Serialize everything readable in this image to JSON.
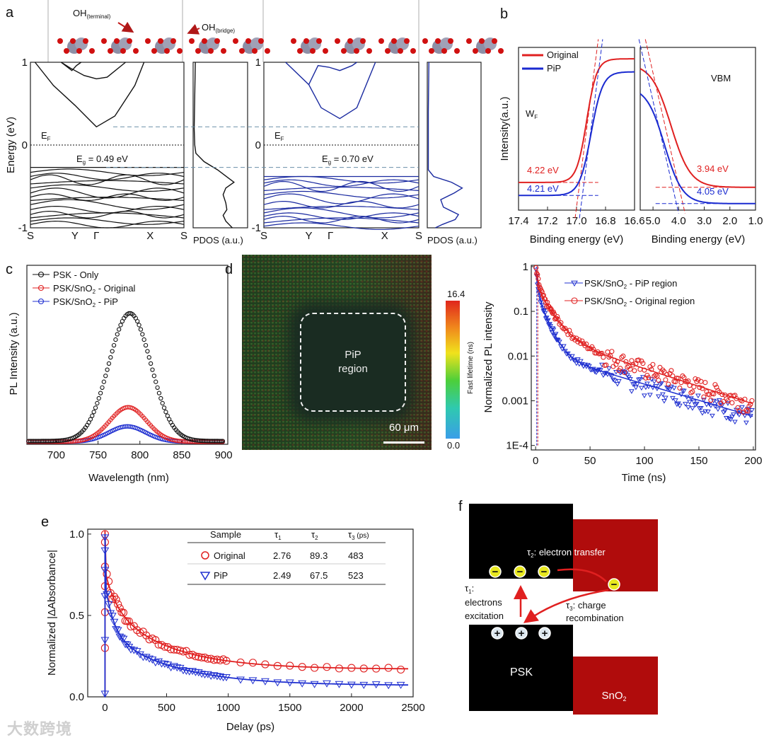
{
  "panel_labels": {
    "a": "a",
    "b": "b",
    "c": "c",
    "d": "d",
    "e": "e",
    "f": "f"
  },
  "watermark": "大数跨境",
  "chart_data": [
    {
      "id": "a-band-original",
      "type": "line",
      "color": "#111111",
      "ylabel": "Energy (eV)",
      "ylim": [
        -1,
        1
      ],
      "yticks": [
        "1",
        "0",
        "-1"
      ],
      "kpoints": [
        "S",
        "Y",
        "Γ",
        "X",
        "S"
      ],
      "fermi": {
        "main": "E",
        "sub": "F"
      },
      "gap": {
        "main": "E",
        "sub": "g",
        "rest": " = 0.49 eV"
      },
      "cbm": 0.22,
      "vbm": -0.27,
      "conduction_bands": [
        [
          [
            0.03,
            1.0
          ],
          [
            0.15,
            0.72
          ],
          [
            0.29,
            0.48
          ],
          [
            0.43,
            0.22
          ],
          [
            0.55,
            0.35
          ],
          [
            0.68,
            0.72
          ],
          [
            0.74,
            1.0
          ]
        ],
        [
          [
            0.2,
            1.0
          ],
          [
            0.26,
            0.93
          ],
          [
            0.35,
            0.84
          ],
          [
            0.43,
            0.8
          ],
          [
            0.5,
            0.82
          ],
          [
            0.62,
            1.0
          ]
        ],
        [
          [
            0.2,
            1.0
          ],
          [
            0.27,
            0.9
          ],
          [
            0.3,
            0.96
          ],
          [
            0.33,
            1.0
          ]
        ]
      ],
      "valence_bands": [
        -0.27,
        -0.33,
        -0.38,
        -0.42,
        -0.47,
        -0.52,
        -0.58,
        -0.63,
        -0.67,
        -0.72,
        -0.78,
        -0.84,
        -0.88,
        -0.92,
        -0.96
      ]
    },
    {
      "id": "a-pdos-original",
      "type": "line",
      "color": "#111111",
      "xlabel": "PDOS (a.u.)",
      "points": [
        [
          1,
          0.04
        ],
        [
          0.6,
          0.03
        ],
        [
          0.2,
          0.02
        ],
        [
          0,
          0.03
        ],
        [
          -0.1,
          0.05
        ],
        [
          -0.2,
          0.2
        ],
        [
          -0.3,
          0.45
        ],
        [
          -0.4,
          0.65
        ],
        [
          -0.45,
          0.75
        ],
        [
          -0.52,
          0.6
        ],
        [
          -0.6,
          0.55
        ],
        [
          -0.7,
          0.6
        ],
        [
          -0.78,
          0.62
        ],
        [
          -0.85,
          0.55
        ],
        [
          -0.92,
          0.6
        ],
        [
          -1,
          0.72
        ]
      ]
    },
    {
      "id": "a-band-pip",
      "type": "line",
      "color": "#1a2aa0",
      "ylim": [
        -1,
        1
      ],
      "yticks": [
        "1",
        "0",
        "-1"
      ],
      "kpoints": [
        "S",
        "Y",
        "Γ",
        "X",
        "S"
      ],
      "fermi": {
        "main": "E",
        "sub": "F"
      },
      "gap": {
        "main": "E",
        "sub": "g",
        "rest": " = 0.70 eV"
      },
      "cbm": 0.32,
      "vbm": -0.38,
      "conduction_bands": [
        [
          [
            0.14,
            1.0
          ],
          [
            0.29,
            0.73
          ],
          [
            0.37,
            0.45
          ],
          [
            0.49,
            0.32
          ],
          [
            0.6,
            0.45
          ],
          [
            0.72,
            1.0
          ]
        ],
        [
          [
            0.29,
            0.73
          ],
          [
            0.35,
            0.96
          ],
          [
            0.42,
            0.94
          ],
          [
            0.49,
            0.9
          ],
          [
            0.57,
            0.96
          ],
          [
            0.6,
            1.0
          ]
        ]
      ],
      "valence_bands": [
        -0.38,
        -0.42,
        -0.46,
        -0.5,
        -0.55,
        -0.6,
        -0.65,
        -0.72,
        -0.78,
        -0.82,
        -0.86,
        -0.9,
        -0.94,
        -0.98
      ]
    },
    {
      "id": "a-pdos-pip",
      "type": "line",
      "color": "#1a2aa0",
      "xlabel": "PDOS (a.u.)",
      "points": [
        [
          1,
          0.03
        ],
        [
          0.4,
          0.02
        ],
        [
          0,
          0.02
        ],
        [
          -0.3,
          0.02
        ],
        [
          -0.38,
          0.12
        ],
        [
          -0.45,
          0.45
        ],
        [
          -0.52,
          0.65
        ],
        [
          -0.58,
          0.5
        ],
        [
          -0.66,
          0.25
        ],
        [
          -0.75,
          0.3
        ],
        [
          -0.84,
          0.58
        ],
        [
          -0.9,
          0.52
        ],
        [
          -0.96,
          0.28
        ],
        [
          -1,
          0.15
        ]
      ]
    },
    {
      "id": "a-structure",
      "annotations": [
        {
          "main": "OH",
          "sub": "(terminal)"
        },
        {
          "main": "OH",
          "sub": "(bridge)"
        }
      ]
    },
    {
      "id": "b-wf",
      "type": "line",
      "ylabel": "Intensity(a.u.)",
      "xlabel": "Binding energy (eV)",
      "xlim": [
        17.4,
        16.6
      ],
      "xticks": [
        "17.4",
        "17.2",
        "17.0",
        "16.8",
        "16.6"
      ],
      "label": {
        "main": "W",
        "sub": "F"
      },
      "legend": [
        {
          "name": "Original",
          "color": "#e02020"
        },
        {
          "name": "PiP",
          "color": "#1a2ad0"
        }
      ],
      "series": [
        {
          "name": "Original",
          "color": "#e02020",
          "base": 0.17,
          "top": 0.93,
          "center": 16.93,
          "width": 0.035,
          "value_label": "4.22 eV"
        },
        {
          "name": "PiP",
          "color": "#1a2ad0",
          "base": 0.09,
          "top": 0.85,
          "center": 16.9,
          "width": 0.04,
          "value_label": "4.21 eV"
        }
      ]
    },
    {
      "id": "b-vbm",
      "type": "line",
      "xlabel": "Binding energy (eV)",
      "xlim": [
        5.5,
        1.0
      ],
      "xticks": [
        "5.0",
        "4.0",
        "3.0",
        "2.0",
        "1.0"
      ],
      "label": "VBM",
      "series": [
        {
          "name": "Original",
          "color": "#e02020",
          "base": 0.14,
          "top": 0.9,
          "center": 4.3,
          "width": 0.38,
          "value_label": "3.94 eV",
          "cutoff": 3.94
        },
        {
          "name": "PiP",
          "color": "#1a2ad0",
          "base": 0.04,
          "top": 0.76,
          "center": 4.55,
          "width": 0.35,
          "value_label": "4.05 eV",
          "cutoff": 4.05
        }
      ]
    },
    {
      "id": "c-pl",
      "type": "scatter",
      "xlabel": "Wavelength (nm)",
      "ylabel": "PL Intensity (a.u.)",
      "xlim": [
        665,
        905
      ],
      "ylim": [
        0,
        1.4
      ],
      "xticks": [
        700,
        750,
        800,
        850,
        900
      ],
      "series": [
        {
          "name": "PSK - Only",
          "color": "#111111",
          "center": 788,
          "sigma": 25,
          "amp": 1.0,
          "base": 0.025
        },
        {
          "name": "PSK/SnO",
          "sub": "2",
          "rest": " - Original",
          "color": "#e02020",
          "center": 786,
          "sigma": 22,
          "amp": 0.27,
          "base": 0.02
        },
        {
          "name": "PSK/SnO",
          "sub": "2",
          "rest": " - PiP",
          "color": "#2030d0",
          "center": 785,
          "sigma": 22,
          "amp": 0.12,
          "base": 0.02
        }
      ]
    },
    {
      "id": "d-flim",
      "type": "heatmap",
      "region_label": [
        "PiP",
        "region"
      ],
      "scale_label": "60 μm",
      "colorbar": {
        "label": "Fast lifetime (ns)",
        "max": "16.4",
        "min": "0.0"
      }
    },
    {
      "id": "d-trpl",
      "type": "scatter",
      "xlabel": "Time (ns)",
      "ylabel": "Normalized PL intensity",
      "xlim": [
        -4,
        202
      ],
      "yscale": "log",
      "ylim_log10": [
        -4.1,
        0.03
      ],
      "xticks": [
        0,
        50,
        100,
        150,
        200
      ],
      "yticks": [
        "1",
        "0.1",
        "0.01",
        "0.001",
        "1E-4"
      ],
      "series": [
        {
          "name": "PSK/SnO",
          "sub": "2",
          "rest": " - PiP region",
          "color": "#2030d0",
          "marker": "triangle",
          "amps": [
            0.7,
            0.25,
            0.012
          ],
          "taus": [
            1.5,
            7,
            60
          ]
        },
        {
          "name": "PSK/SnO",
          "sub": "2",
          "rest": " - Original region",
          "color": "#e02020",
          "marker": "circle",
          "amps": [
            0.6,
            0.3,
            0.03
          ],
          "taus": [
            2,
            10,
            55
          ]
        }
      ]
    },
    {
      "id": "e-ta",
      "type": "scatter",
      "xlabel": "Delay (ps)",
      "ylabel": "Normalized |ΔAbsorbance|",
      "xlim": [
        -140,
        2500
      ],
      "ylim": [
        0,
        1.03
      ],
      "xticks": [
        0,
        500,
        1000,
        1500,
        2000,
        2500
      ],
      "yticks": [
        "0.0",
        "0.5",
        "1.0"
      ],
      "table": {
        "headers": [
          "Sample",
          "τ",
          "1",
          "τ",
          "2",
          "τ",
          "3",
          " (ps)"
        ],
        "rows": [
          {
            "sample": "Original",
            "t1": "2.76",
            "t2": "89.3",
            "t3": "483"
          },
          {
            "sample": "PiP",
            "t1": "2.49",
            "t2": "67.5",
            "t3": "523"
          }
        ]
      },
      "series": [
        {
          "name": "Original",
          "color": "#e02020",
          "marker": "circle",
          "amps": [
            0.25,
            0.2,
            0.4
          ],
          "taus": [
            2.76,
            89.3,
            483
          ],
          "offset": 0.17,
          "early": [
            0.3,
            0.52,
            0.68,
            0.8,
            0.95,
            1.0
          ]
        },
        {
          "name": "PiP",
          "color": "#2030d0",
          "marker": "triangle",
          "amps": [
            0.3,
            0.3,
            0.33
          ],
          "taus": [
            2.49,
            67.5,
            523
          ],
          "offset": 0.07,
          "early": [
            0.02,
            0.35,
            0.62,
            0.78,
            0.9,
            0.98
          ]
        }
      ]
    },
    {
      "id": "f-scheme",
      "type": "diagram",
      "tau2": {
        "main": "τ",
        "sub": "2",
        "rest": ": electron transfer"
      },
      "tau1": {
        "main": "τ",
        "sub": "1",
        "rest": ":",
        "l2": "electrons",
        "l3": "excitation"
      },
      "tau3": {
        "main": "τ",
        "sub": "3",
        "rest": ": charge",
        "l2": "recombination"
      },
      "psk": "PSK",
      "sno2": {
        "main": "SnO",
        "sub": "2"
      },
      "electron_symbol": "−",
      "hole_symbol": "+"
    }
  ]
}
